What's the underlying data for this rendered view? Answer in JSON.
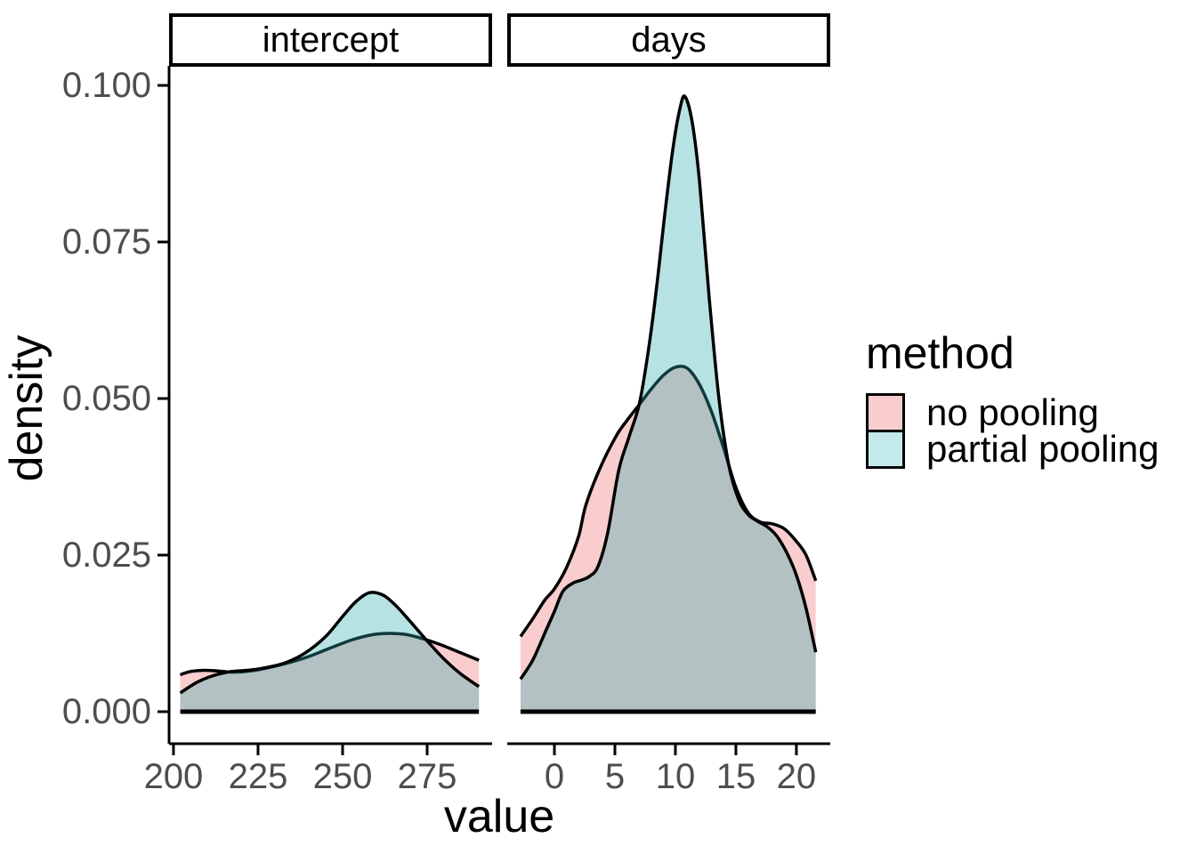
{
  "colors": {
    "background": "#FFFFFF",
    "outline": "#000000",
    "tick_label": "#4D4D4D",
    "axis_line": "#000000",
    "no_pooling_fill": "#F9CDCE",
    "partial_pooling_fill_rgba": "rgba(45,171,177,0.34)",
    "legend_no_pooling": "#F9CDCE",
    "legend_partial_pooling": "#C4E9EA"
  },
  "chart_data": {
    "type": "area",
    "kind": "overlapping density curves, faceted",
    "xlabel": "value",
    "ylabel": "density",
    "ylim": [
      0,
      0.103
    ],
    "y_ticks": [
      0.0,
      0.025,
      0.05,
      0.075,
      0.1
    ],
    "y_tick_labels": [
      "0.000",
      "0.025",
      "0.050",
      "0.075",
      "0.100"
    ],
    "grid": "off",
    "legend_title": "method",
    "legend_position": "right",
    "legend_items": [
      {
        "label": "no pooling",
        "swatch_color": "#F9CDCE"
      },
      {
        "label": "partial pooling",
        "swatch_color": "#C4E9EA"
      }
    ],
    "facets": [
      {
        "label": "intercept",
        "xlim": [
          198.7,
          294.2
        ],
        "x_ticks": [
          200,
          225,
          250,
          275
        ],
        "series": [
          {
            "name": "no pooling",
            "points": [
              [
                202,
                0.0059
              ],
              [
                205,
                0.0064
              ],
              [
                209,
                0.0066
              ],
              [
                213,
                0.0065
              ],
              [
                218,
                0.0063
              ],
              [
                223,
                0.0065
              ],
              [
                228,
                0.007
              ],
              [
                234,
                0.0078
              ],
              [
                240,
                0.0088
              ],
              [
                247,
                0.0103
              ],
              [
                253,
                0.0115
              ],
              [
                259,
                0.0123
              ],
              [
                264,
                0.0125
              ],
              [
                269,
                0.0123
              ],
              [
                274,
                0.0116
              ],
              [
                279,
                0.0107
              ],
              [
                284,
                0.0096
              ],
              [
                290.3,
                0.0082
              ]
            ]
          },
          {
            "name": "partial pooling",
            "points": [
              [
                202,
                0.003
              ],
              [
                207,
                0.0047
              ],
              [
                212,
                0.0058
              ],
              [
                217,
                0.0064
              ],
              [
                222,
                0.0066
              ],
              [
                227,
                0.007
              ],
              [
                233,
                0.0078
              ],
              [
                239,
                0.0094
              ],
              [
                245,
                0.012
              ],
              [
                250,
                0.0152
              ],
              [
                254,
                0.0176
              ],
              [
                258,
                0.019
              ],
              [
                262,
                0.0186
              ],
              [
                266,
                0.0168
              ],
              [
                270,
                0.0144
              ],
              [
                275,
                0.0113
              ],
              [
                280,
                0.0084
              ],
              [
                285,
                0.006
              ],
              [
                290.3,
                0.004
              ]
            ]
          }
        ]
      },
      {
        "label": "days",
        "xlim": [
          -3.9,
          22.8
        ],
        "x_ticks": [
          0,
          5,
          10,
          15,
          20
        ],
        "series": [
          {
            "name": "no pooling",
            "points": [
              [
                -2.8,
                0.012
              ],
              [
                -1.8,
                0.0148
              ],
              [
                -0.8,
                0.0178
              ],
              [
                0,
                0.0196
              ],
              [
                1,
                0.023
              ],
              [
                2,
                0.028
              ],
              [
                2.6,
                0.033
              ],
              [
                3.8,
                0.039
              ],
              [
                5.1,
                0.044
              ],
              [
                6,
                0.0465
              ],
              [
                7,
                0.049
              ],
              [
                8,
                0.0515
              ],
              [
                9,
                0.0537
              ],
              [
                10,
                0.055
              ],
              [
                11,
                0.0548
              ],
              [
                12,
                0.0522
              ],
              [
                13,
                0.0478
              ],
              [
                14,
                0.042
              ],
              [
                15,
                0.0358
              ],
              [
                16,
                0.0318
              ],
              [
                17,
                0.0303
              ],
              [
                18,
                0.03
              ],
              [
                19,
                0.0292
              ],
              [
                20,
                0.0272
              ],
              [
                20.8,
                0.025
              ],
              [
                21.6,
                0.0209
              ]
            ]
          },
          {
            "name": "partial pooling",
            "points": [
              [
                -2.8,
                0.0052
              ],
              [
                -1.8,
                0.0082
              ],
              [
                -0.8,
                0.0125
              ],
              [
                0,
                0.016
              ],
              [
                0.7,
                0.0192
              ],
              [
                1.5,
                0.0205
              ],
              [
                2.2,
                0.021
              ],
              [
                2.9,
                0.0216
              ],
              [
                3.6,
                0.0232
              ],
              [
                4.4,
                0.0285
              ],
              [
                5.3,
                0.0384
              ],
              [
                6.1,
                0.0435
              ],
              [
                7,
                0.049
              ],
              [
                7.7,
                0.0568
              ],
              [
                8.4,
                0.067
              ],
              [
                9.1,
                0.079
              ],
              [
                9.8,
                0.09
              ],
              [
                10.4,
                0.0965
              ],
              [
                10.8,
                0.0982
              ],
              [
                11.4,
                0.094
              ],
              [
                12,
                0.0845
              ],
              [
                12.8,
                0.066
              ],
              [
                13.6,
                0.05
              ],
              [
                14.4,
                0.0395
              ],
              [
                15.2,
                0.034
              ],
              [
                16,
                0.0315
              ],
              [
                16.8,
                0.0304
              ],
              [
                17.6,
                0.0295
              ],
              [
                18.4,
                0.028
              ],
              [
                19.2,
                0.0254
              ],
              [
                20,
                0.0218
              ],
              [
                20.8,
                0.0165
              ],
              [
                21.6,
                0.0095
              ]
            ]
          }
        ]
      }
    ]
  }
}
